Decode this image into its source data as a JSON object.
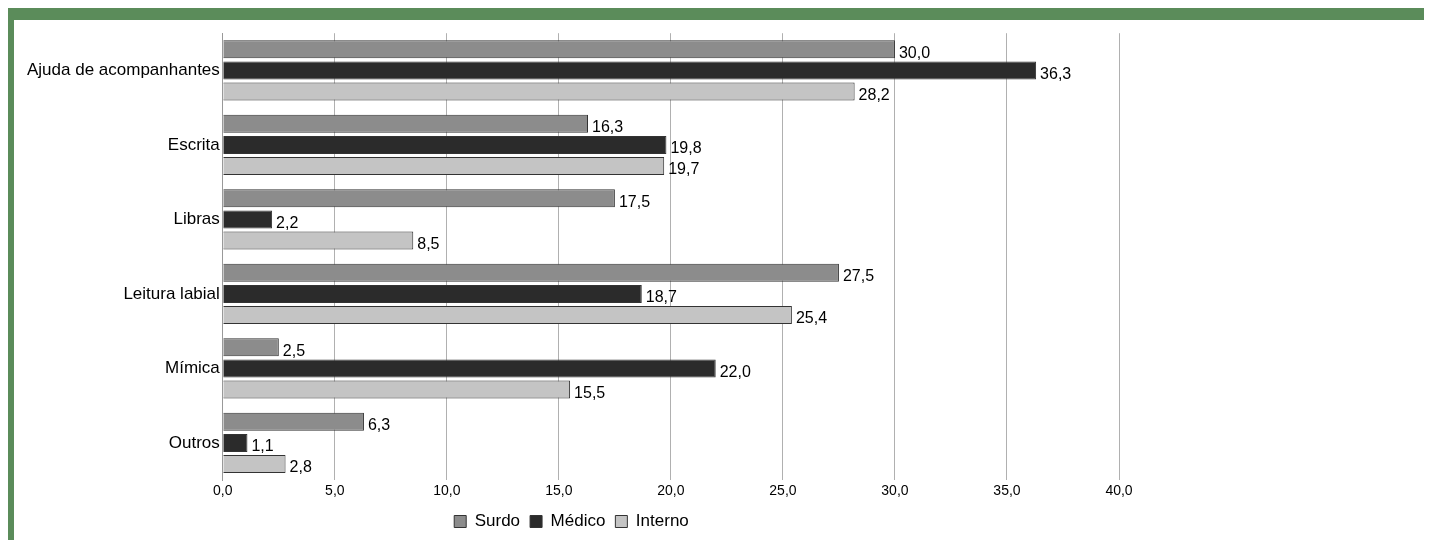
{
  "chart_data": {
    "type": "bar",
    "orientation": "horizontal",
    "categories": [
      "Ajuda de acompanhantes",
      "Escrita",
      "Libras",
      "Leitura labial",
      "Mímica",
      "Outros"
    ],
    "series": [
      {
        "name": "Surdo",
        "color": "#8c8c8c",
        "values": [
          30.0,
          16.3,
          17.5,
          27.5,
          2.5,
          6.3
        ],
        "value_labels": [
          "30,0",
          "16,3",
          "17,5",
          "27,5",
          "2,5",
          "6,3"
        ]
      },
      {
        "name": "Médico",
        "color": "#2b2b2b",
        "values": [
          36.3,
          19.8,
          2.2,
          18.7,
          22.0,
          1.1
        ],
        "value_labels": [
          "36,3",
          "19,8",
          "2,2",
          "18,7",
          "22,0",
          "1,1"
        ]
      },
      {
        "name": "Interno",
        "color": "#c4c4c4",
        "values": [
          28.2,
          19.7,
          8.5,
          25.4,
          15.5,
          2.8
        ],
        "value_labels": [
          "28,2",
          "19,7",
          "8,5",
          "25,4",
          "15,5",
          "2,8"
        ]
      }
    ],
    "xlim": [
      0,
      40
    ],
    "xticks": [
      {
        "value": 0,
        "label": "0,0"
      },
      {
        "value": 5,
        "label": "5,0"
      },
      {
        "value": 10,
        "label": "10,0"
      },
      {
        "value": 15,
        "label": "15,0"
      },
      {
        "value": 20,
        "label": "20,0"
      },
      {
        "value": 25,
        "label": "25,0"
      },
      {
        "value": 30,
        "label": "30,0"
      },
      {
        "value": 35,
        "label": "35,0"
      },
      {
        "value": 40,
        "label": "40,0"
      }
    ],
    "grid": "x",
    "legend": "bottom"
  }
}
